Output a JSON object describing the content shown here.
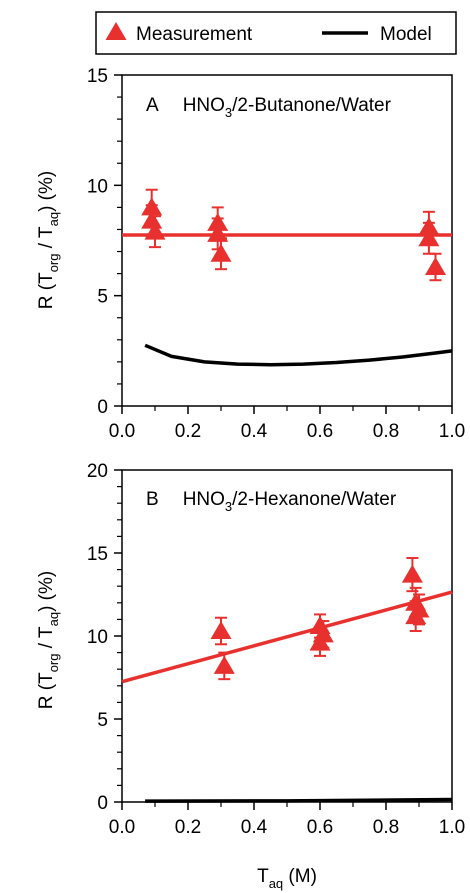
{
  "legend": {
    "measurement_label": "Measurement",
    "model_label": "Model"
  },
  "colors": {
    "measurement": "#e8312f",
    "model": "#000000",
    "axis": "#000000"
  },
  "chart_data": [
    {
      "type": "scatter",
      "panel_letter": "A",
      "title_prefix": "HNO",
      "title_sub": "3",
      "title_suffix": "/2-Butanone/Water",
      "xlabel": "",
      "ylabel": "",
      "xlim": [
        0.0,
        1.0
      ],
      "ylim": [
        0,
        15
      ],
      "xticks": [
        "0.0",
        "0.2",
        "0.4",
        "0.6",
        "0.8",
        "1.0"
      ],
      "yticks": [
        "0",
        "5",
        "10",
        "15"
      ],
      "series": [
        {
          "name": "Measurement",
          "marker": "triangle",
          "points": [
            {
              "x": 0.09,
              "y": 9.0,
              "err": 0.8
            },
            {
              "x": 0.09,
              "y": 8.4,
              "err": 0.7
            },
            {
              "x": 0.1,
              "y": 7.9,
              "err": 0.7
            },
            {
              "x": 0.29,
              "y": 8.3,
              "err": 0.7
            },
            {
              "x": 0.29,
              "y": 7.8,
              "err": 0.7
            },
            {
              "x": 0.3,
              "y": 6.9,
              "err": 0.7
            },
            {
              "x": 0.93,
              "y": 8.1,
              "err": 0.7
            },
            {
              "x": 0.93,
              "y": 7.6,
              "err": 0.7
            },
            {
              "x": 0.95,
              "y": 6.3,
              "err": 0.6
            }
          ]
        },
        {
          "name": "Measurement fit",
          "kind": "line",
          "color": "#e8312f",
          "x": [
            0.0,
            1.0
          ],
          "y": [
            7.75,
            7.75
          ]
        },
        {
          "name": "Model",
          "kind": "line",
          "color": "#000000",
          "x": [
            0.07,
            0.15,
            0.25,
            0.35,
            0.45,
            0.55,
            0.65,
            0.75,
            0.85,
            0.95,
            1.0
          ],
          "y": [
            2.75,
            2.25,
            2.0,
            1.9,
            1.87,
            1.9,
            1.97,
            2.08,
            2.22,
            2.4,
            2.5
          ]
        }
      ]
    },
    {
      "type": "scatter",
      "panel_letter": "B",
      "title_prefix": "HNO",
      "title_sub": "3",
      "title_suffix": "/2-Hexanone/Water",
      "xlabel_main": "T",
      "xlabel_sub": "aq",
      "xlabel_units": " (M)",
      "xlim": [
        0.0,
        1.0
      ],
      "ylim": [
        0,
        20
      ],
      "xticks": [
        "0.0",
        "0.2",
        "0.4",
        "0.6",
        "0.8",
        "1.0"
      ],
      "yticks": [
        "0",
        "5",
        "10",
        "15",
        "20"
      ],
      "series": [
        {
          "name": "Measurement",
          "marker": "triangle",
          "points": [
            {
              "x": 0.3,
              "y": 10.3,
              "err": 0.8
            },
            {
              "x": 0.31,
              "y": 8.2,
              "err": 0.8
            },
            {
              "x": 0.6,
              "y": 10.6,
              "err": 0.7
            },
            {
              "x": 0.61,
              "y": 10.1,
              "err": 0.8
            },
            {
              "x": 0.6,
              "y": 9.6,
              "err": 0.8
            },
            {
              "x": 0.88,
              "y": 13.7,
              "err": 1.0
            },
            {
              "x": 0.89,
              "y": 12.0,
              "err": 0.9
            },
            {
              "x": 0.9,
              "y": 11.6,
              "err": 0.9
            },
            {
              "x": 0.89,
              "y": 11.2,
              "err": 0.9
            }
          ]
        },
        {
          "name": "Measurement fit",
          "kind": "line",
          "color": "#e8312f",
          "x": [
            0.0,
            1.0
          ],
          "y": [
            7.25,
            12.65
          ]
        },
        {
          "name": "Model",
          "kind": "line",
          "color": "#000000",
          "x": [
            0.07,
            0.5,
            1.0
          ],
          "y": [
            0.05,
            0.07,
            0.15
          ]
        }
      ]
    }
  ],
  "ylabel_parts": {
    "prefix": "R (T",
    "sub1": "org",
    "middle": " / T",
    "sub2": "aq",
    "suffix": ") (%)"
  }
}
